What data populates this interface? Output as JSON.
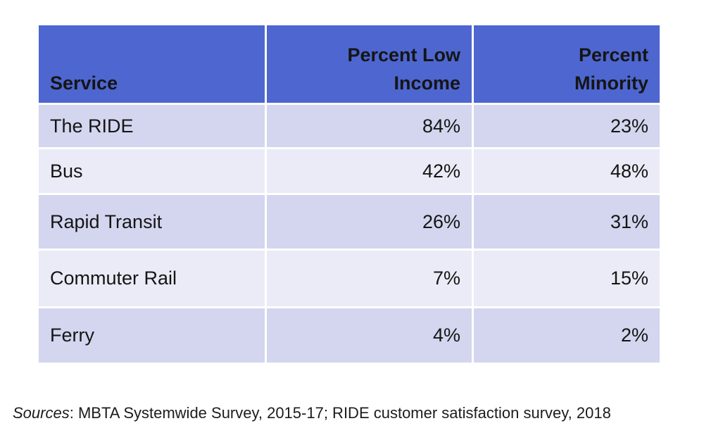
{
  "table": {
    "headers": [
      "Service",
      "Percent Low\nIncome",
      "Percent\nMinority"
    ],
    "rows": [
      {
        "service": "The RIDE",
        "low_income": "84%",
        "minority": "23%"
      },
      {
        "service": "Bus",
        "low_income": "42%",
        "minority": "48%"
      },
      {
        "service": "Rapid Transit",
        "low_income": "26%",
        "minority": "31%"
      },
      {
        "service": "Commuter Rail",
        "low_income": "7%",
        "minority": "15%"
      },
      {
        "service": "Ferry",
        "low_income": "4%",
        "minority": "2%"
      }
    ]
  },
  "caption": {
    "label": "Sources",
    "text": ": MBTA Systemwide Survey, 2015-17; RIDE customer satisfaction survey, 2018"
  },
  "colors": {
    "header_bg": "#4e66d0",
    "row_dark": "#d3d6ee",
    "row_light": "#eaebf6"
  }
}
